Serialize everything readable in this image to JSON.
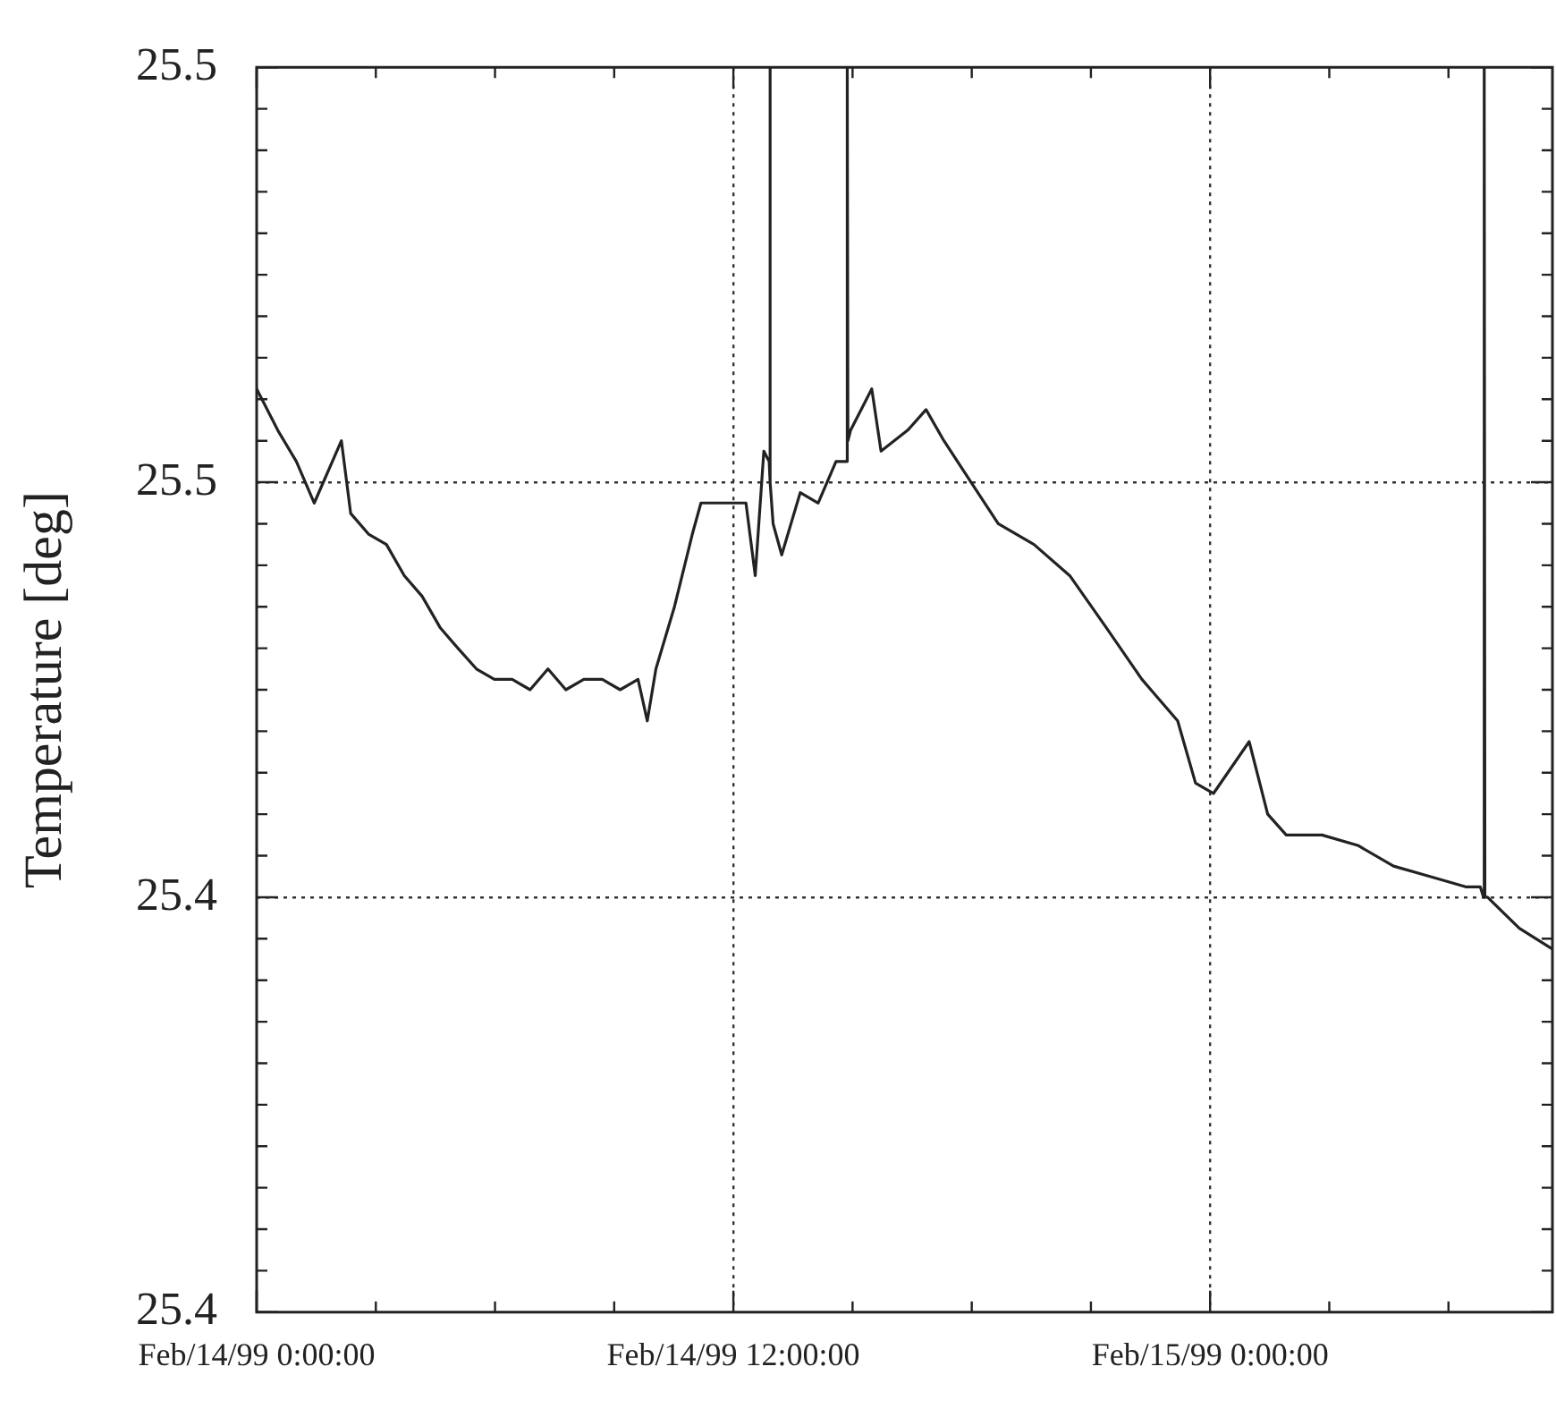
{
  "chart_data": {
    "type": "line",
    "ylabel": "Temperature [deg]",
    "xlim": [
      "1999-02-14T00:00",
      "1999-02-15T08:37"
    ],
    "xticks": [
      {
        "value": "1999-02-14T00:00",
        "label": "Feb/14/99 0:00:00"
      },
      {
        "value": "1999-02-14T03:00",
        "label": null
      },
      {
        "value": "1999-02-14T06:00",
        "label": null
      },
      {
        "value": "1999-02-14T09:00",
        "label": null
      },
      {
        "value": "1999-02-14T12:00",
        "label": "Feb/14/99 12:00:00"
      },
      {
        "value": "1999-02-14T15:00",
        "label": null
      },
      {
        "value": "1999-02-14T18:00",
        "label": null
      },
      {
        "value": "1999-02-14T21:00",
        "label": null
      },
      {
        "value": "1999-02-15T00:00",
        "label": "Feb/15/99 0:00:00"
      },
      {
        "value": "1999-02-15T03:00",
        "label": null
      },
      {
        "value": "1999-02-15T06:00",
        "label": null
      }
    ],
    "ylim": [
      25.38,
      25.5
    ],
    "yticks": [
      {
        "value": 25.38,
        "label": "25.4"
      },
      {
        "value": 25.384,
        "label": null
      },
      {
        "value": 25.388,
        "label": null
      },
      {
        "value": 25.392,
        "label": null
      },
      {
        "value": 25.396,
        "label": null
      },
      {
        "value": 25.4,
        "label": null
      },
      {
        "value": 25.404,
        "label": null
      },
      {
        "value": 25.408,
        "label": null
      },
      {
        "value": 25.412,
        "label": null
      },
      {
        "value": 25.416,
        "label": null
      },
      {
        "value": 25.42,
        "label": "25.4"
      },
      {
        "value": 25.424,
        "label": null
      },
      {
        "value": 25.428,
        "label": null
      },
      {
        "value": 25.432,
        "label": null
      },
      {
        "value": 25.436,
        "label": null
      },
      {
        "value": 25.44,
        "label": null
      },
      {
        "value": 25.444,
        "label": null
      },
      {
        "value": 25.448,
        "label": null
      },
      {
        "value": 25.452,
        "label": null
      },
      {
        "value": 25.456,
        "label": null
      },
      {
        "value": 25.46,
        "label": "25.5"
      },
      {
        "value": 25.464,
        "label": null
      },
      {
        "value": 25.468,
        "label": null
      },
      {
        "value": 25.472,
        "label": null
      },
      {
        "value": 25.476,
        "label": null
      },
      {
        "value": 25.48,
        "label": null
      },
      {
        "value": 25.484,
        "label": null
      },
      {
        "value": 25.488,
        "label": null
      },
      {
        "value": 25.492,
        "label": null
      },
      {
        "value": 25.496,
        "label": null
      },
      {
        "value": 25.5,
        "label": "25.5"
      }
    ],
    "grid": true,
    "marker": "none",
    "line_style": "solid",
    "series": [
      {
        "color": "#222222",
        "x": [
          "1999-02-14T00:00",
          "1999-02-14T00:32",
          "1999-02-14T01:00",
          "1999-02-14T01:27",
          "1999-02-14T02:08",
          "1999-02-14T02:22",
          "1999-02-14T02:49",
          "1999-02-14T03:16",
          "1999-02-14T03:43",
          "1999-02-14T04:10",
          "1999-02-14T04:37",
          "1999-02-14T05:04",
          "1999-02-14T05:32",
          "1999-02-14T05:59",
          "1999-02-14T06:26",
          "1999-02-14T06:53",
          "1999-02-14T07:20",
          "1999-02-14T07:47",
          "1999-02-14T08:14",
          "1999-02-14T08:42",
          "1999-02-14T09:09",
          "1999-02-14T09:36",
          "1999-02-14T09:50",
          "1999-02-14T10:03",
          "1999-02-14T10:31",
          "1999-02-14T10:58",
          "1999-02-14T11:11",
          "1999-02-14T12:19",
          "1999-02-14T12:33",
          "1999-02-14T12:46",
          "1999-02-14T12:54",
          "1999-02-14T12:55",
          "1999-02-14T12:56",
          "1999-02-14T13:00",
          "1999-02-14T13:13",
          "1999-02-14T13:41",
          "1999-02-14T14:08",
          "1999-02-14T14:35",
          "1999-02-14T14:51",
          "1999-02-14T14:52",
          "1999-02-14T14:53",
          "1999-02-14T14:57",
          "1999-02-14T15:29",
          "1999-02-14T15:43",
          "1999-02-14T16:23",
          "1999-02-14T16:51",
          "1999-02-14T17:18",
          "1999-02-14T17:59",
          "1999-02-14T18:40",
          "1999-02-14T19:34",
          "1999-02-14T20:28",
          "1999-02-14T21:23",
          "1999-02-14T22:17",
          "1999-02-14T23:11",
          "1999-02-14T23:38",
          "1999-02-15T00:05",
          "1999-02-15T00:59",
          "1999-02-15T01:27",
          "1999-02-15T01:55",
          "1999-02-15T02:49",
          "1999-02-15T03:43",
          "1999-02-15T04:37",
          "1999-02-15T05:32",
          "1999-02-15T06:26",
          "1999-02-15T06:48",
          "1999-02-15T06:53",
          "1999-02-15T06:54",
          "1999-02-15T06:55",
          "1999-02-15T06:59",
          "1999-02-15T07:47",
          "1999-02-15T08:37"
        ],
        "values": [
          25.469,
          25.465,
          25.462,
          25.458,
          25.464,
          25.457,
          25.455,
          25.454,
          25.451,
          25.449,
          25.446,
          25.444,
          25.442,
          25.441,
          25.441,
          25.44,
          25.442,
          25.44,
          25.441,
          25.441,
          25.44,
          25.441,
          25.437,
          25.442,
          25.448,
          25.455,
          25.458,
          25.458,
          25.451,
          25.463,
          25.462,
          25.5,
          25.46,
          25.456,
          25.453,
          25.459,
          25.458,
          25.462,
          25.462,
          25.5,
          25.464,
          25.465,
          25.469,
          25.463,
          25.465,
          25.467,
          25.464,
          25.46,
          25.456,
          25.454,
          25.451,
          25.446,
          25.441,
          25.437,
          25.431,
          25.43,
          25.435,
          25.428,
          25.426,
          25.426,
          25.425,
          25.423,
          25.422,
          25.421,
          25.421,
          25.42,
          25.5,
          25.42,
          25.42,
          25.417,
          25.415
        ]
      }
    ]
  }
}
